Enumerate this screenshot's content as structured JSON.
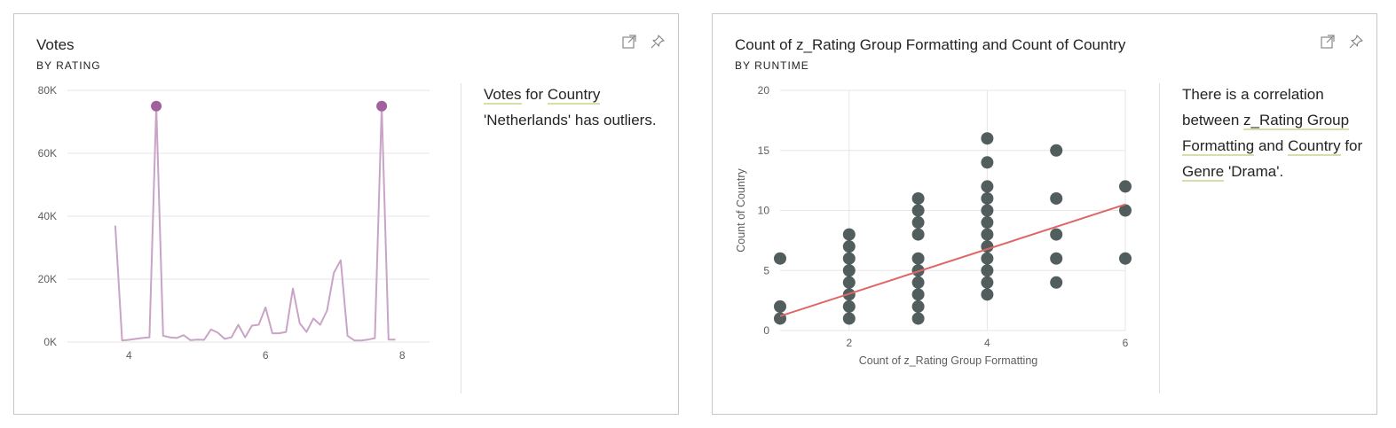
{
  "cards": [
    {
      "title": "Votes",
      "subtitle": "BY RATING",
      "insight": {
        "w1": "Votes",
        "t1": " for ",
        "w2": "Country",
        "t2": " 'Netherlands' has outliers."
      }
    },
    {
      "title": "Count of z_Rating Group Formatting and Count of Country",
      "subtitle": "BY RUNTIME",
      "insight": {
        "t0": "There is a correlation between ",
        "w1": "z_Rating Group Formatting",
        "t1": " and ",
        "w2": "Country",
        "t2": " for ",
        "w3": "Genre",
        "t3": " 'Drama'."
      }
    }
  ],
  "icons": [
    "expand-icon",
    "pin-icon"
  ],
  "colors": {
    "line": "#c9a4c7",
    "outlier": "#a0619f",
    "scatter": "#3a4847",
    "trend": "#e06666",
    "grid": "#e6e6e6",
    "underline": "#d6dfa7"
  },
  "chart_data": [
    {
      "type": "line",
      "title": "Votes",
      "subtitle": "BY RATING",
      "xlim": [
        3.1,
        8.4
      ],
      "ylim": [
        0,
        80000
      ],
      "x_ticks": [
        4,
        6,
        8
      ],
      "y_ticks": [
        0,
        20000,
        40000,
        60000,
        80000
      ],
      "y_tick_labels": [
        "0K",
        "20K",
        "40K",
        "60K",
        "80K"
      ],
      "grid": true,
      "series": [
        {
          "x": [
            3.8,
            3.9,
            4.0,
            4.1,
            4.2,
            4.3,
            4.4,
            4.5,
            4.6,
            4.7,
            4.8,
            4.9,
            5.0,
            5.1,
            5.2,
            5.3,
            5.4,
            5.5,
            5.6,
            5.7,
            5.8,
            5.9,
            6.0,
            6.1,
            6.2,
            6.3,
            6.4,
            6.5,
            6.6,
            6.7,
            6.8,
            6.9,
            7.0,
            7.1,
            7.2,
            7.3,
            7.4,
            7.5,
            7.6,
            7.7,
            7.8,
            7.9
          ],
          "values": [
            37000,
            500,
            700,
            1000,
            1300,
            1500,
            75000,
            2000,
            1500,
            1300,
            2200,
            600,
            800,
            700,
            4000,
            3000,
            1000,
            1500,
            5500,
            1500,
            5200,
            5500,
            11000,
            2800,
            2800,
            3200,
            17000,
            6000,
            3200,
            7500,
            5500,
            10000,
            22000,
            26000,
            2000,
            500,
            500,
            800,
            1200,
            75000,
            800,
            800
          ]
        }
      ],
      "outliers": [
        {
          "x": 4.4,
          "y": 75000
        },
        {
          "x": 7.7,
          "y": 75000
        }
      ]
    },
    {
      "type": "scatter",
      "title": "Count of z_Rating Group Formatting and Count of Country",
      "subtitle": "BY RUNTIME",
      "xlabel": "Count of z_Rating Group Formatting",
      "ylabel": "Count of Country",
      "xlim": [
        1,
        6
      ],
      "ylim": [
        0,
        20
      ],
      "x_ticks": [
        2,
        4,
        6
      ],
      "y_ticks": [
        0,
        5,
        10,
        15,
        20
      ],
      "grid": true,
      "points": [
        [
          1,
          1
        ],
        [
          1,
          2
        ],
        [
          1,
          6
        ],
        [
          2,
          1
        ],
        [
          2,
          2
        ],
        [
          2,
          3
        ],
        [
          2,
          4
        ],
        [
          2,
          5
        ],
        [
          2,
          6
        ],
        [
          2,
          7
        ],
        [
          2,
          8
        ],
        [
          3,
          1
        ],
        [
          3,
          2
        ],
        [
          3,
          3
        ],
        [
          3,
          4
        ],
        [
          3,
          5
        ],
        [
          3,
          6
        ],
        [
          3,
          8
        ],
        [
          3,
          9
        ],
        [
          3,
          10
        ],
        [
          3,
          11
        ],
        [
          4,
          3
        ],
        [
          4,
          4
        ],
        [
          4,
          5
        ],
        [
          4,
          6
        ],
        [
          4,
          7
        ],
        [
          4,
          8
        ],
        [
          4,
          9
        ],
        [
          4,
          10
        ],
        [
          4,
          11
        ],
        [
          4,
          12
        ],
        [
          4,
          14
        ],
        [
          4,
          16
        ],
        [
          5,
          4
        ],
        [
          5,
          6
        ],
        [
          5,
          8
        ],
        [
          5,
          11
        ],
        [
          5,
          15
        ],
        [
          6,
          6
        ],
        [
          6,
          10
        ],
        [
          6,
          12
        ]
      ],
      "trendline": {
        "x": [
          1,
          6
        ],
        "y": [
          1.2,
          10.5
        ]
      }
    }
  ]
}
